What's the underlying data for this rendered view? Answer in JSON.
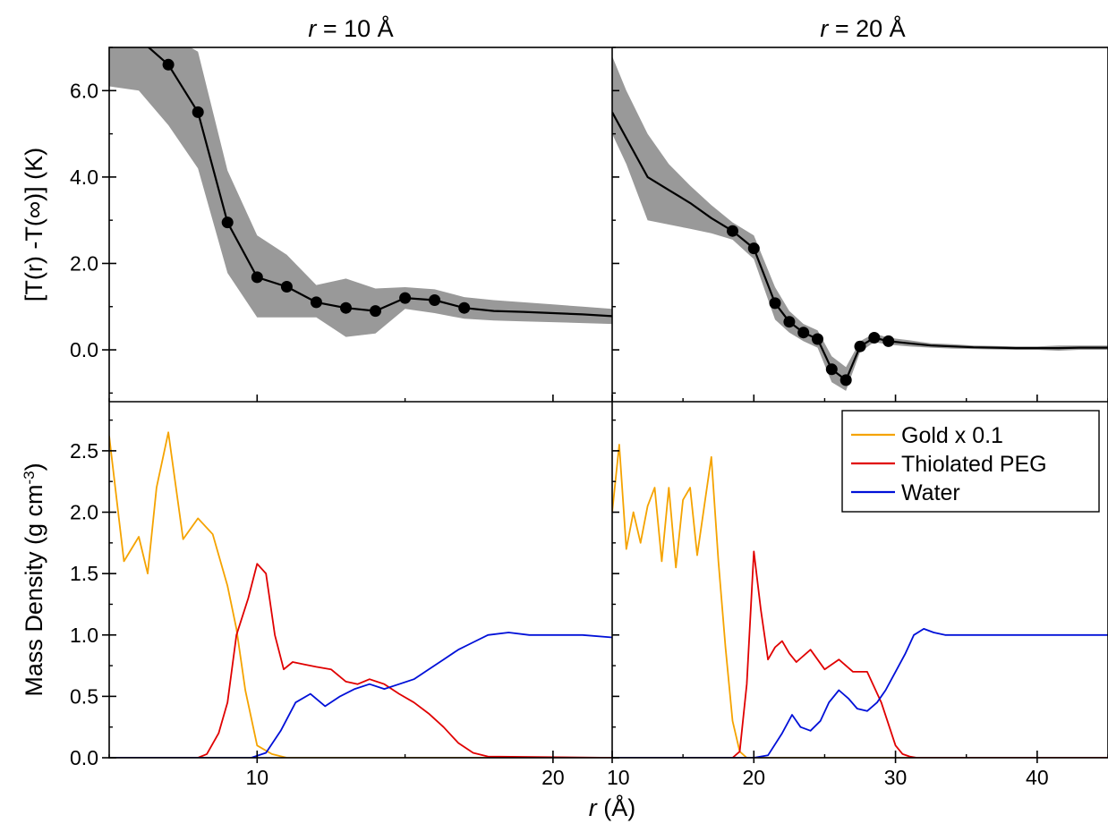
{
  "chart_data": [
    {
      "panel": "top-left",
      "type": "line",
      "title_italic": "r",
      "title_rest": " = 10 Å",
      "ylabel": "[T(r) -T(∞)] (K)",
      "xlim": [
        5,
        22
      ],
      "ylim": [
        -1.2,
        7
      ],
      "xticks": [
        10,
        20
      ],
      "yticks": [
        0,
        2,
        4,
        6
      ],
      "ytick_labels": [
        "0.0",
        "2.0",
        "4.0",
        "6.0"
      ],
      "fill_color": "#999999",
      "line_color": "#000000",
      "series": [
        {
          "x": [
            5.0,
            6.0,
            7.0,
            8.0,
            9.0,
            10.0,
            11.0,
            12.0,
            13.0,
            14.0,
            15.0,
            16.0,
            17.0,
            18.0,
            19.0,
            20.0,
            21.0,
            22.0
          ],
          "y": [
            7.2,
            7.2,
            6.6,
            5.5,
            2.95,
            1.68,
            1.46,
            1.1,
            0.97,
            0.9,
            1.2,
            1.15,
            0.97,
            0.9,
            0.88,
            0.85,
            0.82,
            0.78
          ],
          "lower": [
            6.1,
            6.0,
            5.2,
            4.2,
            1.78,
            0.75,
            0.75,
            0.75,
            0.3,
            0.38,
            0.95,
            0.85,
            0.72,
            0.68,
            0.66,
            0.64,
            0.62,
            0.6
          ],
          "upper": [
            7.5,
            7.5,
            7.3,
            6.9,
            4.15,
            2.65,
            2.2,
            1.5,
            1.65,
            1.42,
            1.45,
            1.4,
            1.22,
            1.15,
            1.1,
            1.05,
            1.0,
            0.95
          ],
          "marker_x": [
            6.0,
            7.0,
            8.0,
            9.0,
            10.0,
            11.0,
            12.0,
            13.0,
            14.0,
            15.0,
            16.0,
            17.0
          ]
        }
      ]
    },
    {
      "panel": "top-right",
      "type": "line",
      "title_italic": "r",
      "title_rest": " = 20 Å",
      "xlim": [
        10,
        45
      ],
      "ylim": [
        -1.2,
        7
      ],
      "xticks": [
        10,
        20,
        30,
        40
      ],
      "yticks": [
        0,
        2,
        4,
        6
      ],
      "fill_color": "#999999",
      "line_color": "#000000",
      "series": [
        {
          "x": [
            10.0,
            11.0,
            12.5,
            14.0,
            15.5,
            17.0,
            18.5,
            20.0,
            21.5,
            22.5,
            23.5,
            24.5,
            25.5,
            26.5,
            27.5,
            28.5,
            29.5,
            31.0,
            32.5,
            34.0,
            35.5,
            37.0,
            38.5,
            40.0,
            41.5,
            43.0,
            44.5,
            45.0
          ],
          "y": [
            5.5,
            4.9,
            4.0,
            3.7,
            3.4,
            3.05,
            2.75,
            2.35,
            1.08,
            0.65,
            0.4,
            0.25,
            -0.45,
            -0.7,
            0.08,
            0.28,
            0.2,
            0.15,
            0.1,
            0.08,
            0.06,
            0.05,
            0.04,
            0.04,
            0.04,
            0.05,
            0.05,
            0.05
          ],
          "lower": [
            5.0,
            4.3,
            3.0,
            2.9,
            2.8,
            2.7,
            2.55,
            2.1,
            0.7,
            0.4,
            0.2,
            0.05,
            -0.75,
            -0.95,
            -0.05,
            0.18,
            0.12,
            0.08,
            0.05,
            0.03,
            0.02,
            0.01,
            0.0,
            0.0,
            -0.02,
            0.0,
            0.0,
            0.0
          ],
          "upper": [
            6.8,
            6.0,
            5.0,
            4.3,
            3.8,
            3.35,
            2.95,
            2.65,
            1.45,
            0.9,
            0.6,
            0.45,
            -0.15,
            -0.4,
            0.2,
            0.38,
            0.28,
            0.22,
            0.15,
            0.13,
            0.1,
            0.09,
            0.08,
            0.08,
            0.1,
            0.1,
            0.1,
            0.1
          ],
          "marker_x": [
            18.5,
            20.0,
            21.5,
            22.5,
            23.5,
            24.5,
            25.5,
            26.5,
            27.5,
            28.5,
            29.5
          ]
        }
      ]
    },
    {
      "panel": "bottom-left",
      "type": "line",
      "xlabel_italic": "r",
      "xlabel_rest": " (Å)",
      "ylabel": "Mass Density (g cm",
      "ylabel_sup": "-3",
      "ylabel_end": ")",
      "xlim": [
        5,
        22
      ],
      "ylim": [
        0,
        2.9
      ],
      "xticks": [
        10,
        20
      ],
      "yticks": [
        0,
        0.5,
        1,
        1.5,
        2,
        2.5
      ],
      "ytick_labels": [
        "0.0",
        "0.5",
        "1.0",
        "1.5",
        "2.0",
        "2.5"
      ],
      "series": [
        {
          "name": "Gold x 0.1",
          "color": "#f5a300",
          "x": [
            5.0,
            5.5,
            6.0,
            6.3,
            6.6,
            7.0,
            7.5,
            8.0,
            8.5,
            9.0,
            9.3,
            9.6,
            10.0,
            10.5,
            11.0,
            11.5,
            12.0,
            13.0,
            22.0
          ],
          "y": [
            2.62,
            1.6,
            1.8,
            1.5,
            2.2,
            2.65,
            1.78,
            1.95,
            1.82,
            1.4,
            1.05,
            0.55,
            0.1,
            0.03,
            0.0,
            0.0,
            0.0,
            0.0,
            0.0
          ]
        },
        {
          "name": "Thiolated PEG",
          "color": "#e00000",
          "x": [
            5.0,
            8.0,
            8.3,
            8.7,
            9.0,
            9.3,
            9.7,
            10.0,
            10.3,
            10.6,
            10.9,
            11.2,
            11.6,
            12.0,
            12.5,
            13.0,
            13.4,
            13.8,
            14.3,
            14.8,
            15.3,
            15.8,
            16.3,
            16.8,
            17.3,
            17.8,
            22.0
          ],
          "y": [
            0.0,
            0.0,
            0.03,
            0.2,
            0.45,
            1.0,
            1.3,
            1.58,
            1.5,
            1.0,
            0.72,
            0.78,
            0.76,
            0.74,
            0.72,
            0.62,
            0.6,
            0.64,
            0.6,
            0.52,
            0.45,
            0.36,
            0.25,
            0.12,
            0.04,
            0.01,
            0.0
          ]
        },
        {
          "name": "Water",
          "color": "#0010d8",
          "x": [
            5.0,
            9.8,
            10.3,
            10.8,
            11.3,
            11.8,
            12.3,
            12.8,
            13.3,
            13.8,
            14.3,
            14.8,
            15.3,
            15.8,
            16.3,
            16.8,
            17.3,
            17.8,
            18.5,
            19.2,
            20.0,
            21.0,
            22.0
          ],
          "y": [
            0.0,
            0.0,
            0.04,
            0.22,
            0.45,
            0.52,
            0.42,
            0.5,
            0.56,
            0.6,
            0.56,
            0.6,
            0.64,
            0.72,
            0.8,
            0.88,
            0.94,
            1.0,
            1.02,
            1.0,
            1.0,
            1.0,
            0.98
          ]
        }
      ]
    },
    {
      "panel": "bottom-right",
      "type": "line",
      "xlim": [
        10,
        45
      ],
      "ylim": [
        0,
        2.9
      ],
      "xticks": [
        10,
        20,
        30,
        40
      ],
      "xtick_labels": [
        "10",
        "20",
        "30",
        "40"
      ],
      "yticks": [
        0,
        0.5,
        1,
        1.5,
        2,
        2.5
      ],
      "legend_position": "top-right",
      "series": [
        {
          "name": "Gold x 0.1",
          "color": "#f5a300",
          "x": [
            10.0,
            10.5,
            11.0,
            11.5,
            12.0,
            12.5,
            13.0,
            13.5,
            14.0,
            14.5,
            15.0,
            15.5,
            16.0,
            16.5,
            17.0,
            17.5,
            18.0,
            18.5,
            19.0,
            19.5,
            20.0,
            20.3,
            20.6,
            21.0,
            22.0,
            45.0
          ],
          "y": [
            2.0,
            2.55,
            1.7,
            2.0,
            1.75,
            2.05,
            2.2,
            1.6,
            2.2,
            1.55,
            2.1,
            2.2,
            1.65,
            2.05,
            2.45,
            1.6,
            0.9,
            0.3,
            0.05,
            0.0,
            0.0,
            0.0,
            0.0,
            0.0,
            0.0,
            0.0
          ]
        },
        {
          "name": "Thiolated PEG",
          "color": "#e00000",
          "x": [
            10.0,
            18.5,
            19.0,
            19.5,
            20.0,
            20.5,
            21.0,
            21.5,
            22.0,
            22.5,
            23.0,
            24.0,
            25.0,
            26.0,
            27.0,
            28.0,
            29.0,
            30.0,
            30.5,
            31.0,
            31.5,
            45.0
          ],
          "y": [
            0.0,
            0.0,
            0.05,
            0.6,
            1.68,
            1.2,
            0.8,
            0.9,
            0.95,
            0.85,
            0.78,
            0.88,
            0.72,
            0.8,
            0.7,
            0.7,
            0.45,
            0.1,
            0.03,
            0.01,
            0.0,
            0.0
          ]
        },
        {
          "name": "Water",
          "color": "#0010d8",
          "x": [
            10.0,
            20.0,
            21.0,
            22.0,
            22.7,
            23.3,
            24.0,
            24.7,
            25.3,
            26.0,
            26.7,
            27.3,
            28.0,
            28.7,
            29.3,
            30.0,
            30.7,
            31.3,
            32.0,
            32.7,
            33.5,
            35.0,
            38.0,
            41.0,
            45.0
          ],
          "y": [
            0.0,
            0.0,
            0.02,
            0.2,
            0.35,
            0.25,
            0.22,
            0.3,
            0.45,
            0.55,
            0.48,
            0.4,
            0.38,
            0.45,
            0.55,
            0.7,
            0.85,
            1.0,
            1.05,
            1.02,
            1.0,
            1.0,
            1.0,
            1.0,
            1.0
          ]
        }
      ]
    }
  ]
}
